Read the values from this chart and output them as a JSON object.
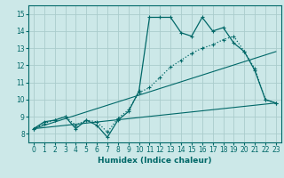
{
  "background_color": "#cce8e8",
  "grid_color": "#aacccc",
  "line_color": "#006868",
  "xlabel": "Humidex (Indice chaleur)",
  "xlim": [
    -0.5,
    23.5
  ],
  "ylim": [
    7.5,
    15.5
  ],
  "xticks": [
    0,
    1,
    2,
    3,
    4,
    5,
    6,
    7,
    8,
    9,
    10,
    11,
    12,
    13,
    14,
    15,
    16,
    17,
    18,
    19,
    20,
    21,
    22,
    23
  ],
  "yticks": [
    8,
    9,
    10,
    11,
    12,
    13,
    14,
    15
  ],
  "line1_x": [
    0,
    1,
    2,
    3,
    4,
    5,
    6,
    7,
    8,
    9,
    10,
    11,
    12,
    13,
    14,
    15,
    16,
    17,
    18,
    19,
    20,
    21,
    22,
    23
  ],
  "line1_y": [
    8.3,
    8.7,
    8.8,
    9.0,
    8.3,
    8.8,
    8.5,
    7.8,
    8.8,
    9.3,
    10.5,
    14.8,
    14.8,
    14.8,
    13.9,
    13.7,
    14.8,
    14.0,
    14.2,
    13.3,
    12.8,
    11.7,
    10.0,
    9.8
  ],
  "line2_x": [
    0,
    1,
    2,
    3,
    4,
    5,
    6,
    7,
    8,
    9,
    10,
    11,
    12,
    13,
    14,
    15,
    16,
    17,
    18,
    19,
    20,
    21,
    22,
    23
  ],
  "line2_y": [
    8.3,
    8.6,
    8.8,
    9.0,
    8.5,
    8.8,
    8.7,
    8.1,
    8.9,
    9.4,
    10.4,
    10.7,
    11.3,
    11.9,
    12.3,
    12.7,
    13.0,
    13.2,
    13.5,
    13.7,
    12.8,
    11.8,
    10.0,
    9.8
  ],
  "line3_x": [
    0,
    23
  ],
  "line3_y": [
    8.3,
    9.8
  ],
  "line4_x": [
    0,
    23
  ],
  "line4_y": [
    8.3,
    12.8
  ]
}
